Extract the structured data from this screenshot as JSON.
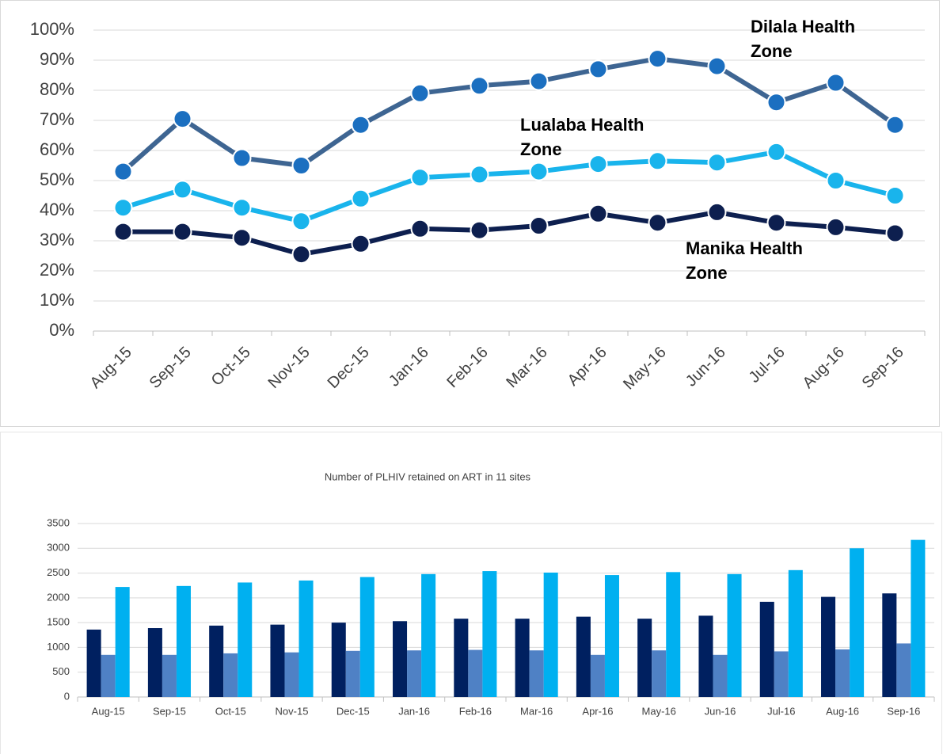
{
  "chart_data": [
    {
      "type": "line",
      "categories": [
        "Aug-15",
        "Sep-15",
        "Oct-15",
        "Nov-15",
        "Dec-15",
        "Jan-16",
        "Feb-16",
        "Mar-16",
        "Apr-16",
        "May-16",
        "Jun-16",
        "Jul-16",
        "Aug-16",
        "Sep-16"
      ],
      "series": [
        {
          "name": "Dilala Health Zone",
          "color": "#3e6592",
          "values": [
            53,
            70.5,
            57.5,
            55,
            68.5,
            79,
            81.5,
            83,
            87,
            90.5,
            88,
            76,
            82.5,
            68.5
          ]
        },
        {
          "name": "Lualaba Health Zone",
          "color": "#19b4ec",
          "values": [
            41,
            47,
            41,
            36.5,
            44,
            51,
            52,
            53,
            55.5,
            56.5,
            56,
            59.5,
            50,
            45
          ]
        },
        {
          "name": "Manika Health Zone",
          "color": "#0d1f4f",
          "values": [
            33,
            33,
            31,
            25.5,
            29,
            34,
            33.5,
            35,
            39,
            36,
            39.5,
            36,
            34.5,
            32.5
          ]
        }
      ],
      "ylim": [
        0,
        100
      ],
      "yticks": [
        {
          "value": 0,
          "label": "0%"
        },
        {
          "value": 10,
          "label": "10%"
        },
        {
          "value": 20,
          "label": "20%"
        },
        {
          "value": 30,
          "label": "30%"
        },
        {
          "value": 40,
          "label": "40%"
        },
        {
          "value": 50,
          "label": "50%"
        },
        {
          "value": 60,
          "label": "60%"
        },
        {
          "value": 70,
          "label": "70%"
        },
        {
          "value": 80,
          "label": "80%"
        },
        {
          "value": 90,
          "label": "90%"
        },
        {
          "value": 100,
          "label": "100%"
        }
      ],
      "grid": true
    },
    {
      "type": "bar",
      "title": "Number of PLHIV retained on ART in 11 sites",
      "categories": [
        "Aug-15",
        "Sep-15",
        "Oct-15",
        "Nov-15",
        "Dec-15",
        "Jan-16",
        "Feb-16",
        "Mar-16",
        "Apr-16",
        "May-16",
        "Jun-16",
        "Jul-16",
        "Aug-16",
        "Sep-16"
      ],
      "series": [
        {
          "color": "#002060",
          "values": [
            1360,
            1390,
            1440,
            1460,
            1500,
            1530,
            1580,
            1580,
            1620,
            1580,
            1640,
            1920,
            2020,
            2090
          ]
        },
        {
          "color": "#4f81c5",
          "values": [
            850,
            850,
            880,
            900,
            930,
            940,
            950,
            940,
            850,
            940,
            850,
            920,
            960,
            1080
          ]
        },
        {
          "color": "#00b0f0",
          "values": [
            2220,
            2240,
            2310,
            2350,
            2420,
            2480,
            2540,
            2510,
            2460,
            2520,
            2480,
            2560,
            3000,
            3170
          ]
        }
      ],
      "ylim": [
        0,
        3500
      ],
      "yticks": [
        0,
        500,
        1000,
        1500,
        2000,
        2500,
        3000,
        3500
      ],
      "grid": true
    }
  ]
}
